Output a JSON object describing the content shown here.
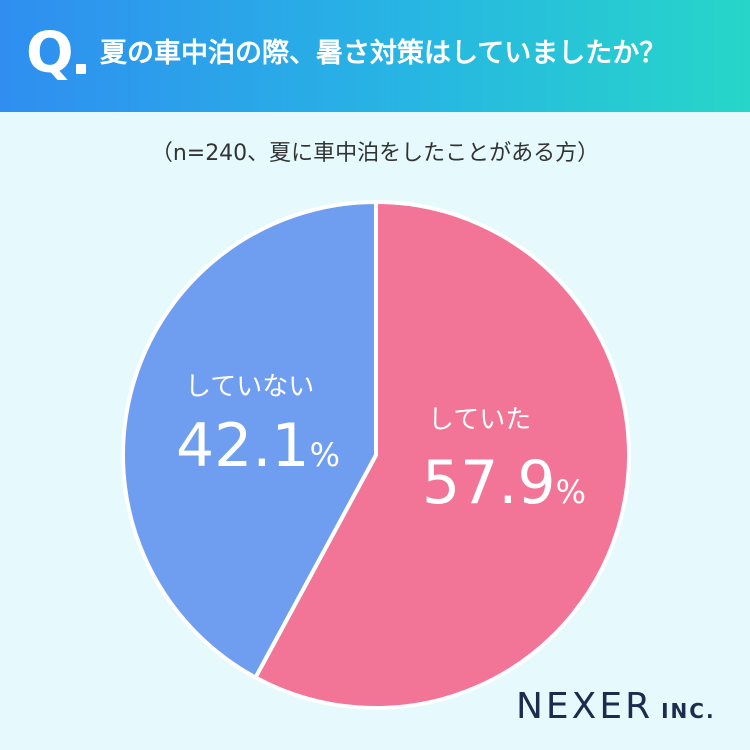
{
  "header": {
    "q_mark": "Q",
    "question": "夏の車中泊の際、暑さ対策はしていましたか？"
  },
  "subtitle": "（n=240、夏に車中泊をしたことがある方）",
  "brand": {
    "name": "NEXER",
    "suffix": "INC."
  },
  "colors": {
    "did": "#f27497",
    "did_not": "#6f9ef0",
    "background": "#e6fafd",
    "header_start": "#2f8ef0",
    "header_end": "#27d6c8"
  },
  "chart_data": {
    "type": "pie",
    "n": 240,
    "slices": [
      {
        "label": "していた",
        "value": 57.9,
        "display": "57.9",
        "unit": "%",
        "color": "#f27497"
      },
      {
        "label": "していない",
        "value": 42.1,
        "display": "42.1",
        "unit": "%",
        "color": "#6f9ef0"
      }
    ],
    "start": "12 o'clock",
    "direction": "clockwise"
  }
}
